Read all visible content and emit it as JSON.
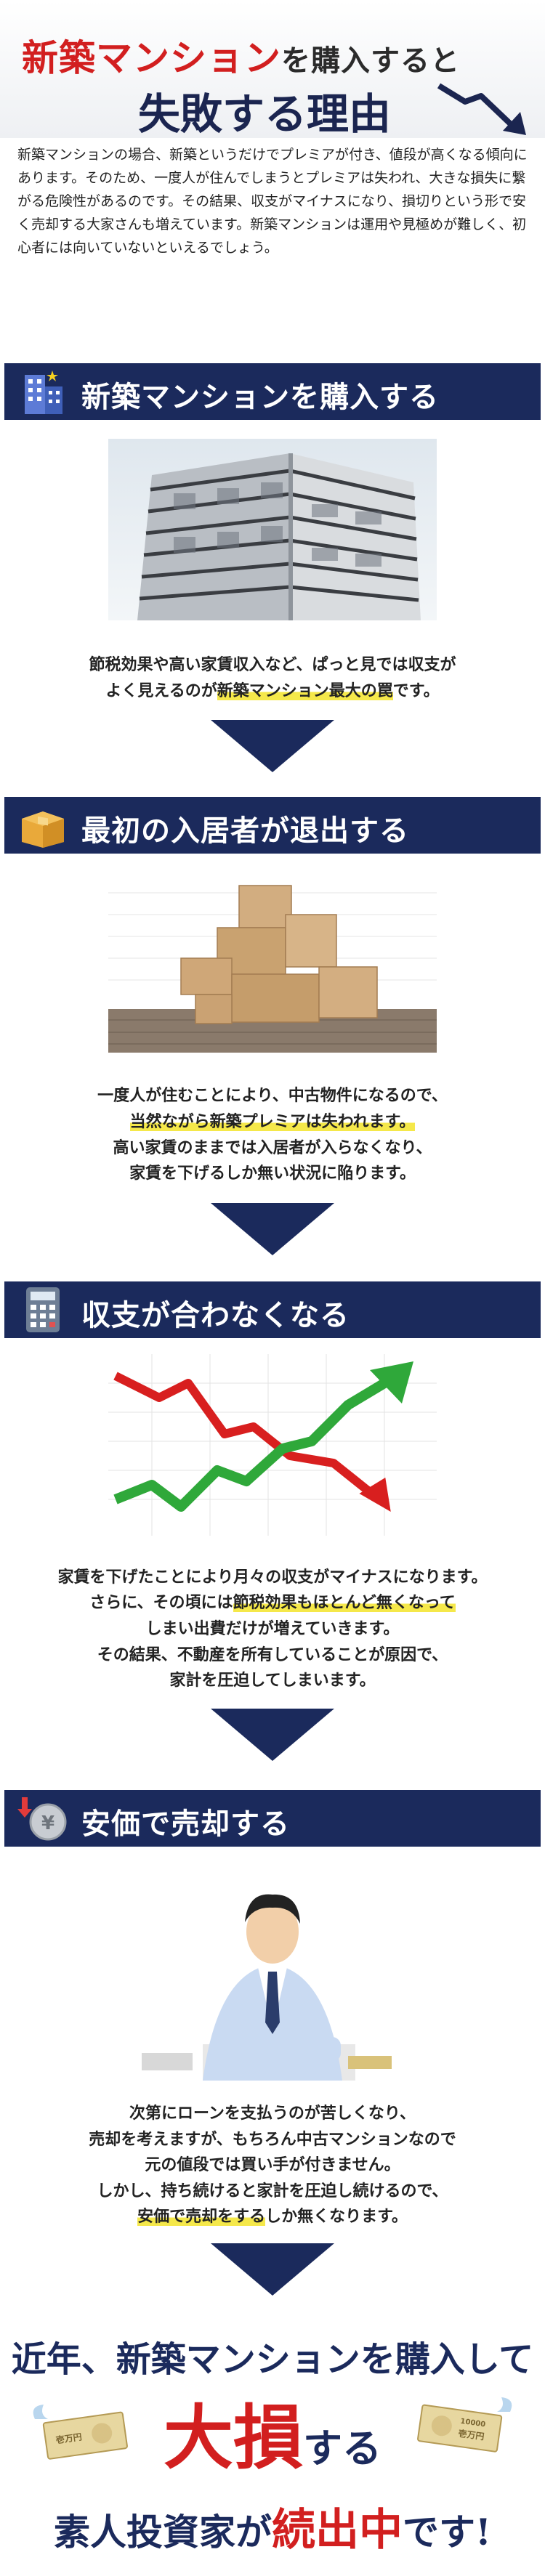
{
  "hero": {
    "title_red": "新築マンション",
    "title_connector": "を購入すると",
    "title_line2": "失敗する理由"
  },
  "intro_text": "新築マンションの場合、新築というだけでプレミアが付き、値段が高くなる傾向にあります。そのため、一度人が住んでしまうとプレミアは失われ、大きな損失に繋がる危険性があるのです。その結果、収支がマイナスになり、損切りという形で安く売却する大家さんも増えています。新築マンションは運用や見極めが難しく、初心者には向いていないといえるでしょう。",
  "sections": [
    {
      "title": "新築マンションを購入する",
      "icon": "building-icon",
      "lines": [
        {
          "parts": [
            {
              "t": "節税効果や高い家賃収入など、ぱっと見では収支が"
            }
          ]
        },
        {
          "parts": [
            {
              "t": "よく見えるのが"
            },
            {
              "t": "新築マンション最大の罠",
              "hl": true
            },
            {
              "t": "です。"
            }
          ]
        }
      ]
    },
    {
      "title": "最初の入居者が退出する",
      "icon": "cardboard-box-icon",
      "lines": [
        {
          "parts": [
            {
              "t": "一度人が住むことにより、中古物件になるので、"
            }
          ]
        },
        {
          "parts": [
            {
              "t": "当然ながら新築プレミアは失われます。",
              "hl": true
            }
          ]
        },
        {
          "parts": [
            {
              "t": "高い家賃のままでは入居者が入らなくなり、"
            }
          ]
        },
        {
          "parts": [
            {
              "t": "家賃を下げるしか無い状況に陥ります。"
            }
          ]
        }
      ]
    },
    {
      "title": "収支が合わなくなる",
      "icon": "calculator-icon",
      "lines": [
        {
          "parts": [
            {
              "t": "家賃を下げたことにより月々の収支がマイナスになります。"
            }
          ]
        },
        {
          "parts": [
            {
              "t": "さらに、その頃には"
            },
            {
              "t": "節税効果もほとんど無くなって",
              "hl": true
            }
          ]
        },
        {
          "parts": [
            {
              "t": "しまい出費だけが増えていきます。"
            }
          ]
        },
        {
          "parts": [
            {
              "t": "その結果、不動産を所有していることが原因で、"
            }
          ]
        },
        {
          "parts": [
            {
              "t": "家計を圧迫してしまいます。"
            }
          ]
        }
      ]
    },
    {
      "title": "安価で売却する",
      "icon": "yen-coin-down-icon",
      "lines": [
        {
          "parts": [
            {
              "t": "次第にローンを支払うのが苦しくなり、"
            }
          ]
        },
        {
          "parts": [
            {
              "t": "売却を考えますが、もちろん中古マンションなので"
            }
          ]
        },
        {
          "parts": [
            {
              "t": "元の値段では買い手が付きません。"
            }
          ]
        },
        {
          "parts": [
            {
              "t": "しかし、持ち続けると家計を圧迫し続けるので、"
            }
          ]
        },
        {
          "parts": [
            {
              "t": "安価で売却をする",
              "hl": true
            },
            {
              "t": "しか無くなります。"
            }
          ]
        }
      ]
    }
  ],
  "footer": {
    "line1": "近年、新築マンションを購入して",
    "big": "大損",
    "suru": "する",
    "line3_a": "素人投資家が",
    "line3_red": "続出中",
    "line3_b": "です!",
    "bill_text": "壱万円",
    "bill_number": "10000"
  },
  "colors": {
    "navy": "#1b2a5c",
    "red": "#d21f1f",
    "highlight": "#f5e84a"
  }
}
